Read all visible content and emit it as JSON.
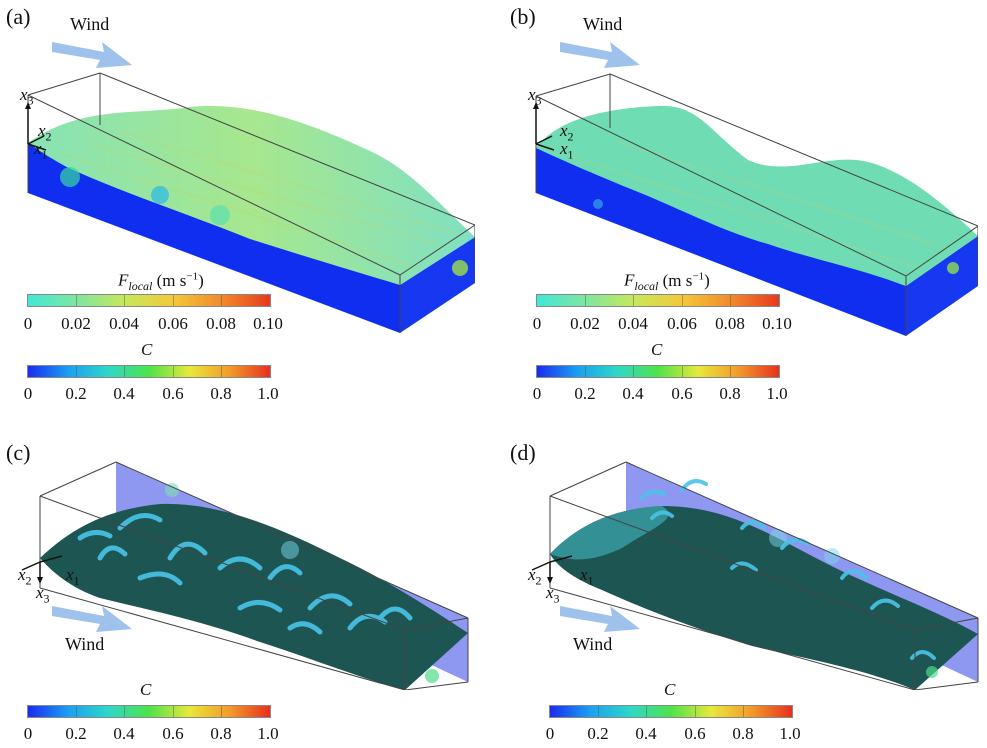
{
  "panels": [
    {
      "id": "a",
      "label": "(a)",
      "wind": "Wind",
      "axes": [
        "x3",
        "x2",
        "x1"
      ]
    },
    {
      "id": "b",
      "label": "(b)",
      "wind": "Wind",
      "axes": [
        "x3",
        "x2",
        "x1"
      ]
    },
    {
      "id": "c",
      "label": "(c)",
      "wind": "Wind",
      "axes": [
        "x2",
        "x1",
        "x3"
      ]
    },
    {
      "id": "d",
      "label": "(d)",
      "wind": "Wind",
      "axes": [
        "x2",
        "x1",
        "x3"
      ]
    }
  ],
  "colorbars": {
    "f_local": {
      "symbol": "F",
      "symbol_sub": "local",
      "unit": "(m s",
      "unit_sup": "−1",
      "unit_close": ")",
      "ticks": [
        "0",
        "0.02",
        "0.04",
        "0.06",
        "0.08",
        "0.10"
      ]
    },
    "c": {
      "symbol": "C",
      "ticks": [
        "0",
        "0.2",
        "0.4",
        "0.6",
        "0.8",
        "1.0"
      ]
    }
  },
  "colors": {
    "f_local_gradient": [
      "#40e8d8",
      "#7fe6a0",
      "#c6e85a",
      "#f3c93a",
      "#f38a2a",
      "#e83a1e"
    ],
    "c_gradient": [
      "#1a2cf0",
      "#1aa0f2",
      "#2ed8c8",
      "#4ee34a",
      "#e8e83a",
      "#f39a2a",
      "#e8301e"
    ],
    "water": "#1030ee",
    "surface": "#7ee0b8",
    "dark_surface": "#1d5552",
    "vortex": "#49c4e8",
    "wind_arrow": "#9ec2ec"
  }
}
